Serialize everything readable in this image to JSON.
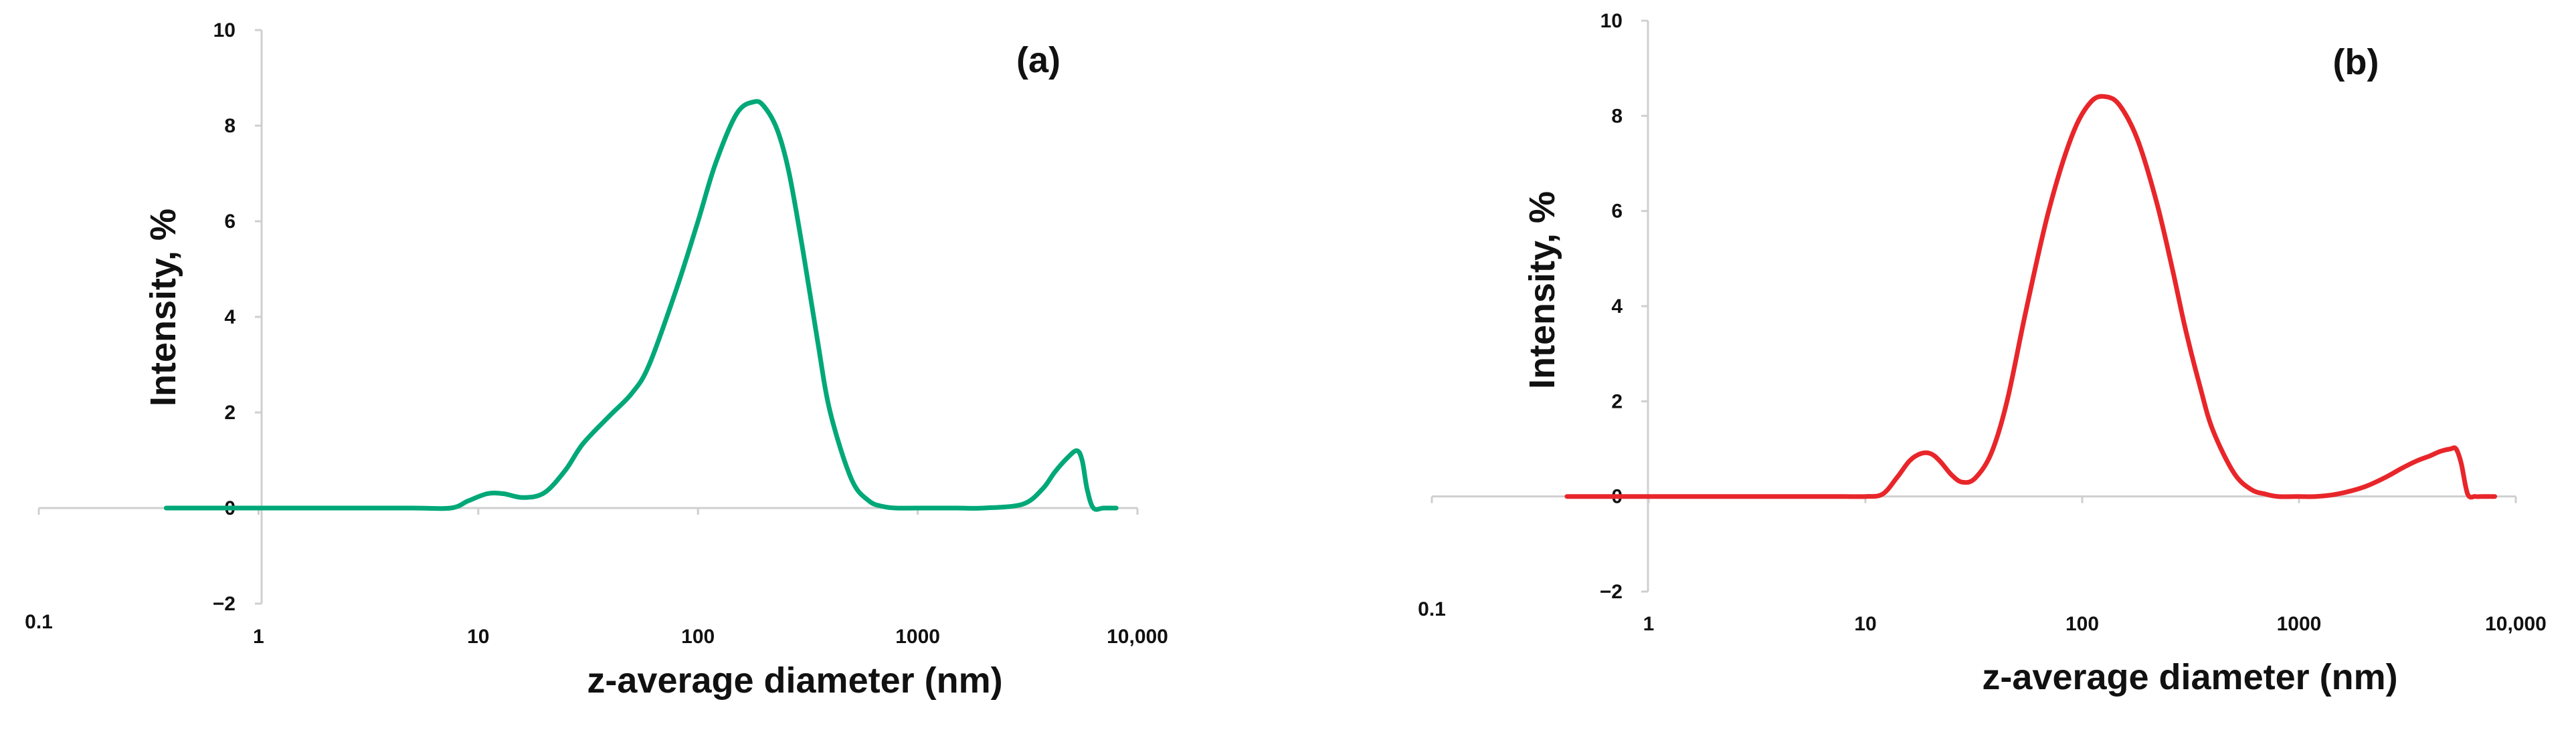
{
  "chart_data": [
    {
      "type": "line",
      "title": "(a)",
      "xlabel": "z-average diameter (nm)",
      "ylabel": "Intensity, %",
      "x_scale": "log",
      "xlim": [
        0.1,
        10000
      ],
      "ylim": [
        -2,
        10
      ],
      "x_tick_labels": [
        "0.1",
        "1",
        "10",
        "100",
        "1000",
        "10,000"
      ],
      "y_tick_labels": [
        "−2",
        "0",
        "2",
        "4",
        "6",
        "8",
        "10"
      ],
      "grid": false,
      "legend": "none",
      "series": [
        {
          "color": "#00a878",
          "x": [
            0.38,
            1,
            2,
            5,
            7.5,
            9,
            11,
            13,
            16,
            20,
            25,
            30,
            40,
            50,
            60,
            80,
            100,
            120,
            150,
            180,
            200,
            230,
            260,
            300,
            350,
            400,
            500,
            600,
            700,
            800,
            1000,
            1500,
            2000,
            3000,
            3700,
            4200,
            4800,
            5300,
            5600,
            5900,
            6300,
            7000,
            8000
          ],
          "y": [
            0.0,
            0.0,
            0.0,
            0.0,
            0.0,
            0.15,
            0.3,
            0.3,
            0.22,
            0.32,
            0.8,
            1.35,
            1.95,
            2.4,
            3.0,
            4.6,
            6.0,
            7.2,
            8.25,
            8.5,
            8.4,
            7.9,
            7.0,
            5.4,
            3.5,
            2.0,
            0.6,
            0.15,
            0.03,
            0.0,
            0.0,
            0.0,
            0.0,
            0.08,
            0.4,
            0.75,
            1.05,
            1.2,
            1.0,
            0.4,
            0.0,
            0.0,
            0.0
          ]
        }
      ]
    },
    {
      "type": "line",
      "title": "(b)",
      "xlabel": "z-average diameter (nm)",
      "ylabel": "Intensity, %",
      "x_scale": "log",
      "xlim": [
        0.1,
        10000
      ],
      "ylim": [
        -2,
        10
      ],
      "x_tick_labels": [
        "0.1",
        "1",
        "10",
        "100",
        "1000",
        "10,000"
      ],
      "y_tick_labels": [
        "−2",
        "0",
        "2",
        "4",
        "6",
        "8",
        "10"
      ],
      "grid": false,
      "legend": "none",
      "series": [
        {
          "color": "#e8262a",
          "x": [
            0.42,
            1,
            2,
            5,
            8,
            10,
            12,
            14,
            16,
            18,
            20,
            22,
            25,
            28,
            32,
            38,
            45,
            55,
            70,
            90,
            110,
            130,
            150,
            180,
            220,
            260,
            300,
            350,
            400,
            500,
            600,
            700,
            800,
            1000,
            1200,
            1500,
            2000,
            2500,
            3000,
            3500,
            4000,
            4500,
            5000,
            5300,
            5600,
            6000,
            6500,
            7000,
            8000
          ],
          "y": [
            0.0,
            0.0,
            0.0,
            0.0,
            0.0,
            0.0,
            0.05,
            0.4,
            0.75,
            0.9,
            0.9,
            0.75,
            0.45,
            0.3,
            0.38,
            0.9,
            2.0,
            3.9,
            6.0,
            7.6,
            8.3,
            8.4,
            8.2,
            7.5,
            6.2,
            4.8,
            3.5,
            2.3,
            1.4,
            0.5,
            0.15,
            0.05,
            0.0,
            0.0,
            0.0,
            0.05,
            0.2,
            0.4,
            0.6,
            0.75,
            0.85,
            0.95,
            1.0,
            1.0,
            0.7,
            0.05,
            0.0,
            0.0,
            0.0
          ]
        }
      ]
    }
  ]
}
